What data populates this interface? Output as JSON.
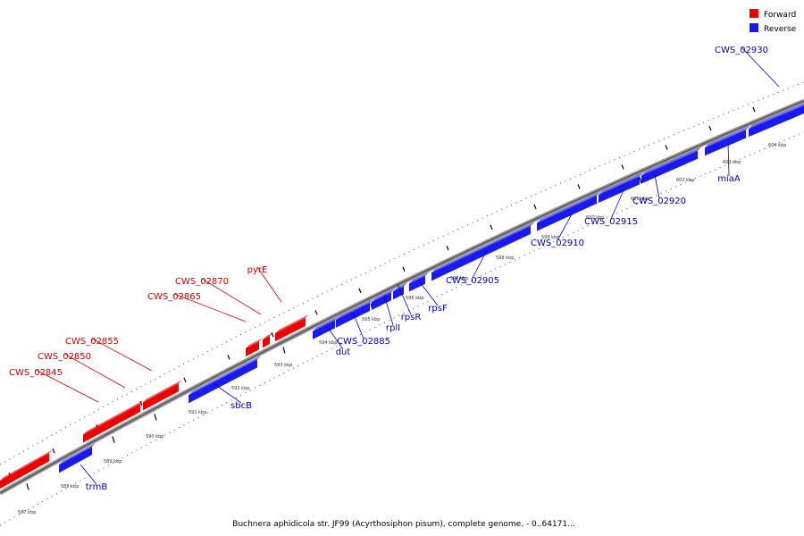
{
  "legend": {
    "forward_label": "Forward",
    "reverse_label": "Reverse",
    "forward_color": "#ee0000",
    "reverse_color": "#1a1aee"
  },
  "caption": "Buchnera aphidicola str. JF99 (Acyrthosiphon pisum), complete genome. - 0..64171...",
  "label_colors": {
    "forward": "#cc0000",
    "reverse": "#0000bb"
  },
  "tick_labels": [
    "587 kbp",
    "588 kbp",
    "589 kbp",
    "590 kbp",
    "591 kbp",
    "592 kbp",
    "593 kbp",
    "594 kbp",
    "595 kbp",
    "596 kbp",
    "597 kbp",
    "598 kbp",
    "599 kbp",
    "600 kbp",
    "601 kbp",
    "602 kbp",
    "603 kbp",
    "604 kbp"
  ],
  "forward_genes": [
    {
      "name": "CWS_02845"
    },
    {
      "name": "CWS_02850"
    },
    {
      "name": "CWS_02855"
    },
    {
      "name": "CWS_02865"
    },
    {
      "name": "CWS_02870"
    },
    {
      "name": "pyrE"
    }
  ],
  "reverse_genes": [
    {
      "name": "trmB"
    },
    {
      "name": "sbcB"
    },
    {
      "name": "dut"
    },
    {
      "name": "CWS_02885"
    },
    {
      "name": "rplI"
    },
    {
      "name": "rpsR"
    },
    {
      "name": "rpsF"
    },
    {
      "name": "CWS_02905"
    },
    {
      "name": "CWS_02910"
    },
    {
      "name": "CWS_02915"
    },
    {
      "name": "CWS_02920"
    },
    {
      "name": "miaA"
    },
    {
      "name": "CWS_02930"
    }
  ]
}
